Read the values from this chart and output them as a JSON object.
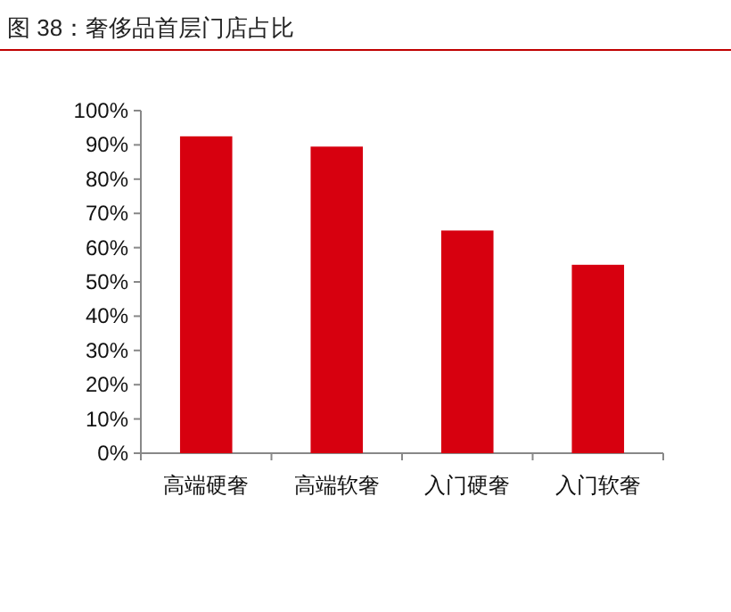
{
  "chart_data": {
    "type": "bar",
    "title": "图 38：奢侈品首层门店占比",
    "categories": [
      "高端硬奢",
      "高端软奢",
      "入门硬奢",
      "入门软奢"
    ],
    "values": [
      92.5,
      89.5,
      65,
      55
    ],
    "color": "#d7000f",
    "ylim": [
      0,
      100
    ],
    "yticks": [
      {
        "value": 0,
        "label": "0%"
      },
      {
        "value": 10,
        "label": "10%"
      },
      {
        "value": 20,
        "label": "20%"
      },
      {
        "value": 30,
        "label": "30%"
      },
      {
        "value": 40,
        "label": "40%"
      },
      {
        "value": 50,
        "label": "50%"
      },
      {
        "value": 60,
        "label": "60%"
      },
      {
        "value": 70,
        "label": "70%"
      },
      {
        "value": 80,
        "label": "80%"
      },
      {
        "value": 90,
        "label": "90%"
      },
      {
        "value": 100,
        "label": "100%"
      }
    ],
    "grid": false
  }
}
